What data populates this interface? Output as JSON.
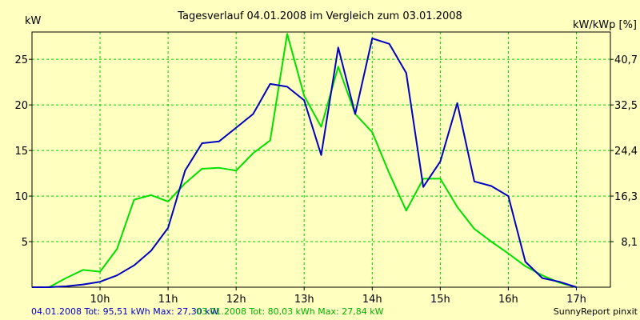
{
  "chart_data": {
    "type": "line",
    "title": "Tagesverlauf 04.01.2008 im Vergleich zum 03.01.2008",
    "ylabel_left": "kW",
    "ylabel_right": "kW/kWp [%]",
    "x_start_hours": 9.0,
    "x_end_hours": 17.5,
    "x_ticks": [
      {
        "label": "10h",
        "value": 10
      },
      {
        "label": "11h",
        "value": 11
      },
      {
        "label": "12h",
        "value": 12
      },
      {
        "label": "13h",
        "value": 13
      },
      {
        "label": "14h",
        "value": 14
      },
      {
        "label": "15h",
        "value": 15
      },
      {
        "label": "16h",
        "value": 16
      },
      {
        "label": "17h",
        "value": 17
      }
    ],
    "ylim": [
      0,
      28
    ],
    "y_ticks": [
      5,
      10,
      15,
      20,
      25
    ],
    "y_right_ticks": [
      {
        "label": "8,1",
        "at_kw": 5
      },
      {
        "label": "16,3",
        "at_kw": 10
      },
      {
        "label": "24,4",
        "at_kw": 15
      },
      {
        "label": "32,5",
        "at_kw": 20
      },
      {
        "label": "40,7",
        "at_kw": 25
      }
    ],
    "grid": true,
    "series": [
      {
        "name": "04.01.2008",
        "color": "#0000c0",
        "points": [
          [
            9.0,
            0
          ],
          [
            9.25,
            0
          ],
          [
            9.5,
            0.1
          ],
          [
            9.75,
            0.3
          ],
          [
            10.0,
            0.6
          ],
          [
            10.25,
            1.3
          ],
          [
            10.5,
            2.4
          ],
          [
            10.75,
            4.0
          ],
          [
            11.0,
            6.5
          ],
          [
            11.25,
            12.8
          ],
          [
            11.5,
            15.8
          ],
          [
            11.75,
            16.0
          ],
          [
            12.0,
            17.5
          ],
          [
            12.25,
            19.0
          ],
          [
            12.5,
            22.3
          ],
          [
            12.75,
            22.0
          ],
          [
            13.0,
            20.5
          ],
          [
            13.25,
            14.5
          ],
          [
            13.5,
            26.3
          ],
          [
            13.75,
            19.0
          ],
          [
            14.0,
            27.3
          ],
          [
            14.25,
            26.7
          ],
          [
            14.5,
            23.5
          ],
          [
            14.75,
            11.0
          ],
          [
            15.0,
            13.8
          ],
          [
            15.25,
            20.2
          ],
          [
            15.5,
            11.6
          ],
          [
            15.75,
            11.1
          ],
          [
            16.0,
            10.0
          ],
          [
            16.25,
            2.8
          ],
          [
            16.5,
            1.0
          ],
          [
            16.75,
            0.6
          ],
          [
            17.0,
            0
          ]
        ]
      },
      {
        "name": "03.01.2008",
        "color": "#00e000",
        "points": [
          [
            9.0,
            0
          ],
          [
            9.25,
            0
          ],
          [
            9.5,
            1.0
          ],
          [
            9.75,
            1.9
          ],
          [
            10.0,
            1.7
          ],
          [
            10.25,
            4.2
          ],
          [
            10.5,
            9.6
          ],
          [
            10.75,
            10.1
          ],
          [
            11.0,
            9.4
          ],
          [
            11.25,
            11.4
          ],
          [
            11.5,
            13.0
          ],
          [
            11.75,
            13.1
          ],
          [
            12.0,
            12.8
          ],
          [
            12.25,
            14.7
          ],
          [
            12.5,
            16.1
          ],
          [
            12.75,
            27.8
          ],
          [
            13.0,
            21.0
          ],
          [
            13.25,
            17.6
          ],
          [
            13.5,
            24.2
          ],
          [
            13.75,
            19.0
          ],
          [
            14.0,
            17.0
          ],
          [
            14.25,
            12.5
          ],
          [
            14.5,
            8.4
          ],
          [
            14.75,
            11.9
          ],
          [
            15.0,
            11.9
          ],
          [
            15.25,
            8.8
          ],
          [
            15.5,
            6.4
          ],
          [
            15.75,
            5.0
          ],
          [
            16.0,
            3.7
          ],
          [
            16.25,
            2.3
          ],
          [
            16.5,
            1.3
          ],
          [
            16.75,
            0.5
          ],
          [
            17.0,
            0
          ]
        ]
      }
    ]
  },
  "legend": {
    "series_a_text": "04.01.2008 Tot: 95,51 kWh Max: 27,30 kW",
    "series_b_text": "03.01.2008 Tot: 80,03 kWh Max: 27,84 kW"
  },
  "credit": "SunnyReport pinxit",
  "colors": {
    "background": "#ffffc0",
    "grid": "#00d000",
    "axis": "#000000"
  }
}
